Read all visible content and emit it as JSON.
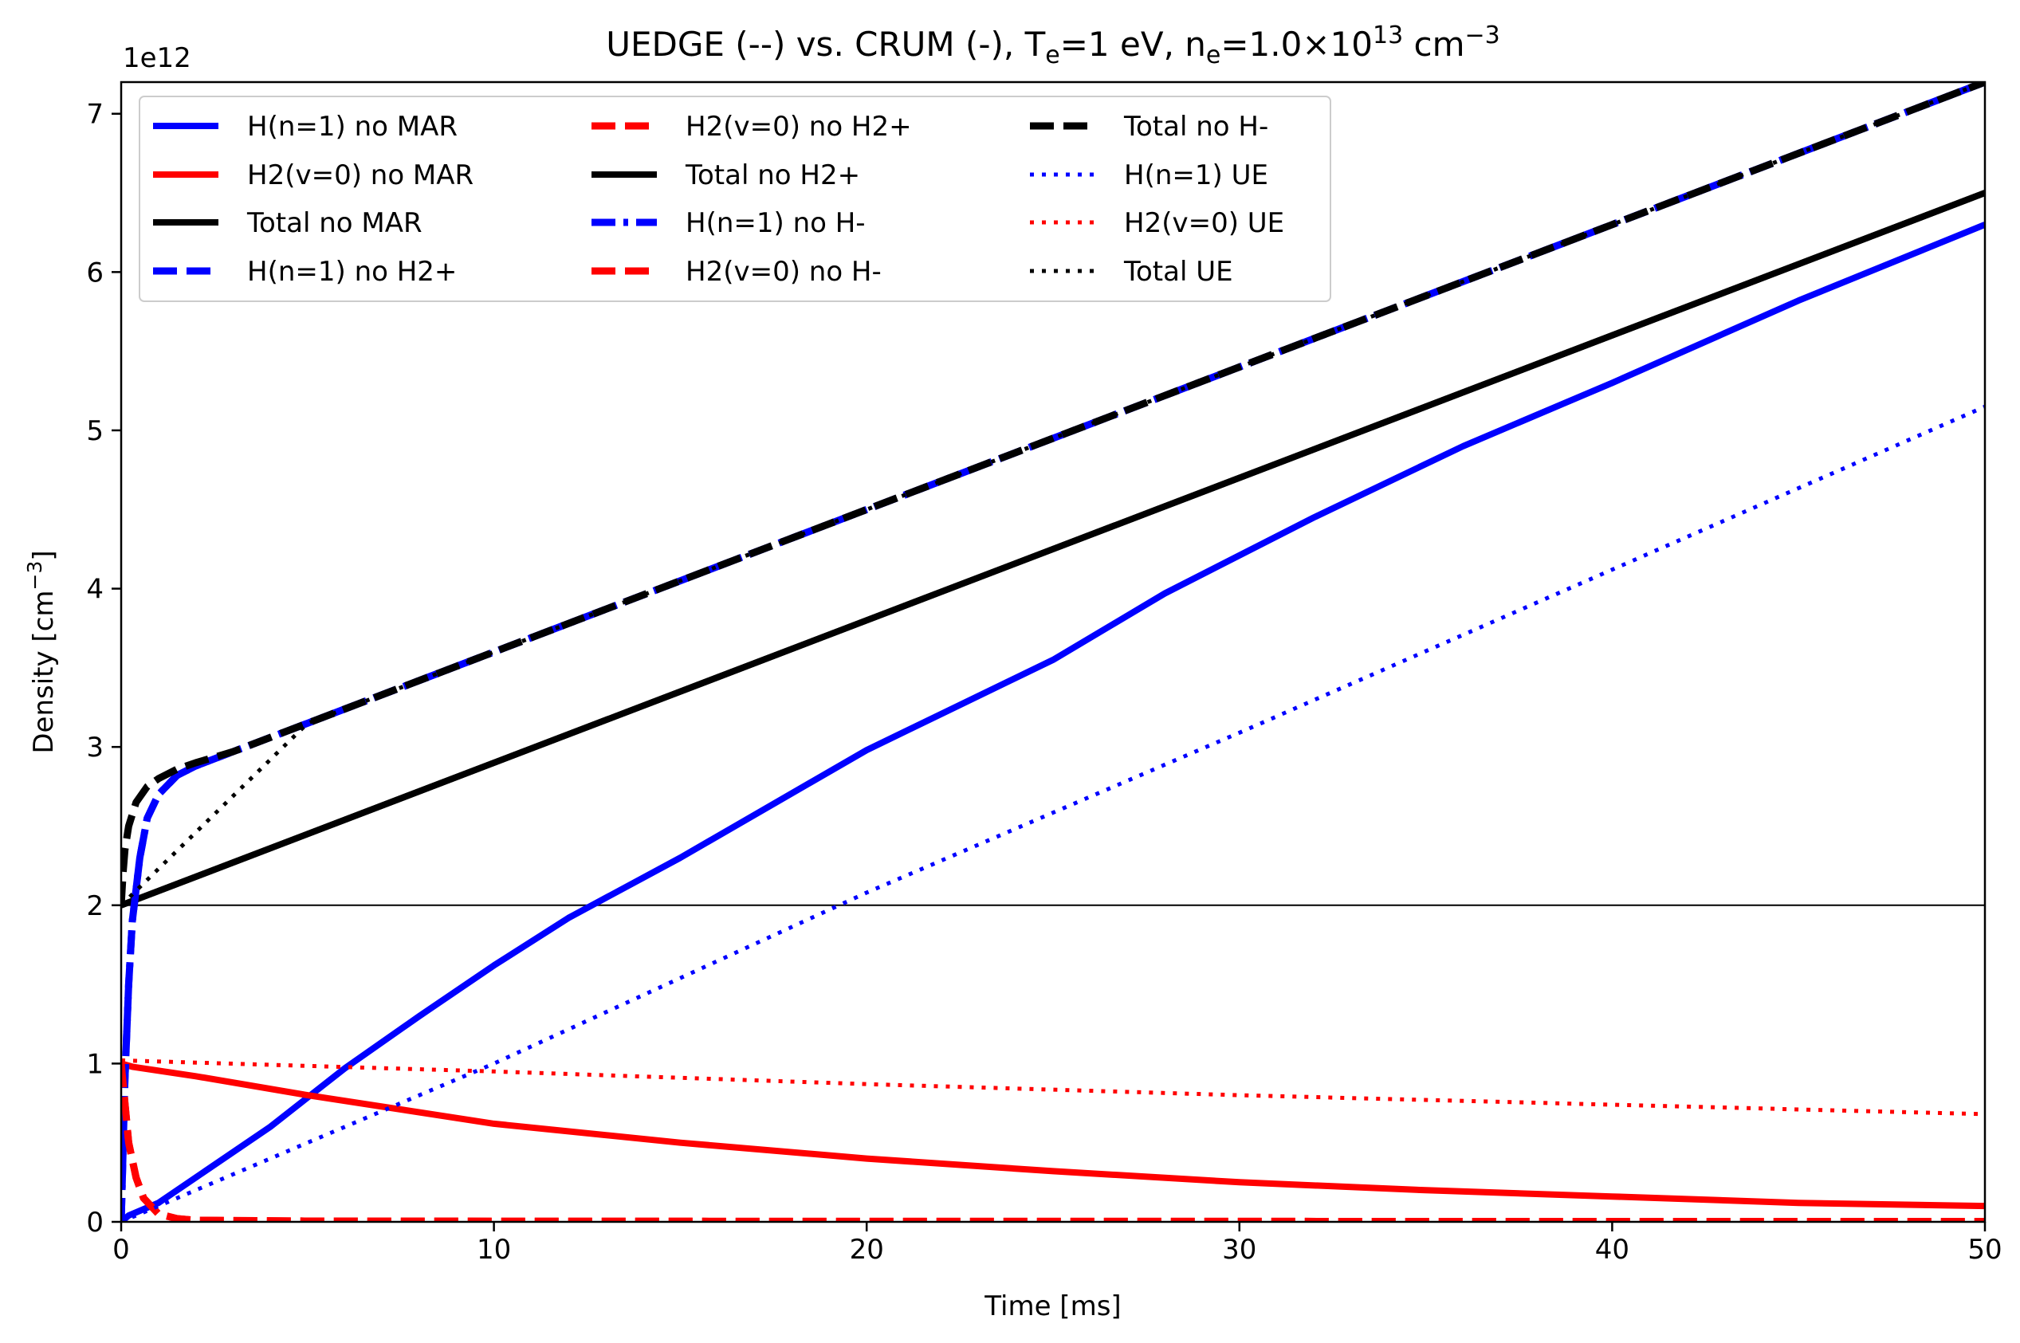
{
  "chart_data": {
    "type": "line",
    "title": {
      "prefix": "UEDGE (--) vs. CRUM (-),  T",
      "te_sub": "e",
      "te_rest": "=1 eV, n",
      "ne_sub": "e",
      "ne_rest": "=1.0×10",
      "exp": "13",
      "unit": " cm",
      "unit_exp": "−3"
    },
    "xlabel": "Time [ms]",
    "ylabel": {
      "text": "Density [cm",
      "exp": "−3",
      "close": "]"
    },
    "y_offset_label": "1e12",
    "xlim": [
      0,
      50
    ],
    "ylim": [
      0,
      7.2
    ],
    "x_ticks": [
      0,
      10,
      20,
      30,
      40,
      50
    ],
    "x_tick_labels": [
      "0",
      "10",
      "20",
      "30",
      "40",
      "50"
    ],
    "y_ticks": [
      0,
      1,
      2,
      3,
      4,
      5,
      6,
      7
    ],
    "y_tick_labels": [
      "0",
      "1",
      "2",
      "3",
      "4",
      "5",
      "6",
      "7"
    ],
    "hline": 2,
    "grid": false,
    "legend_position": "upper-left",
    "legend_columns": 3,
    "series": [
      {
        "name": "H(n=1) no MAR",
        "color": "#0000ff",
        "style": "solid",
        "x": [
          0,
          0.2,
          1,
          2,
          4,
          6,
          8,
          10,
          12,
          15,
          20,
          25,
          28,
          32,
          36,
          40,
          45,
          50
        ],
        "y": [
          0,
          0.04,
          0.12,
          0.28,
          0.6,
          0.97,
          1.3,
          1.62,
          1.92,
          2.3,
          2.98,
          3.55,
          3.97,
          4.45,
          4.9,
          5.3,
          5.82,
          6.3
        ]
      },
      {
        "name": "H2(v=0) no MAR",
        "color": "#ff0000",
        "style": "solid",
        "x": [
          0,
          0.3,
          2,
          5,
          10,
          15,
          20,
          25,
          30,
          35,
          40,
          45,
          50
        ],
        "y": [
          1.0,
          0.98,
          0.92,
          0.8,
          0.62,
          0.5,
          0.4,
          0.32,
          0.25,
          0.2,
          0.16,
          0.12,
          0.1
        ]
      },
      {
        "name": "Total no MAR",
        "color": "#000000",
        "style": "solid",
        "x": [
          0,
          50
        ],
        "y": [
          2.0,
          6.5
        ]
      },
      {
        "name": "H(n=1) no H2+",
        "color": "#0000ff",
        "style": "dashed",
        "x": [
          0,
          0.1,
          0.2,
          0.3,
          0.5,
          0.7,
          1,
          1.5,
          2,
          3,
          5,
          10,
          20,
          30,
          40,
          50
        ],
        "y": [
          0,
          0.9,
          1.5,
          1.9,
          2.3,
          2.55,
          2.7,
          2.82,
          2.88,
          2.97,
          3.15,
          3.6,
          4.5,
          5.4,
          6.3,
          7.2
        ]
      },
      {
        "name": "H2(v=0) no H2+",
        "color": "#ff0000",
        "style": "dashed",
        "x": [
          0,
          0.1,
          0.2,
          0.4,
          0.6,
          1,
          1.5,
          2,
          5,
          10,
          20,
          30,
          40,
          50
        ],
        "y": [
          1.0,
          0.75,
          0.5,
          0.28,
          0.15,
          0.05,
          0.02,
          0.01,
          0.005,
          0.004,
          0.003,
          0.003,
          0.002,
          0.002
        ]
      },
      {
        "name": "Total no H2+",
        "color": "#000000",
        "style": "solid",
        "x": [
          0,
          50
        ],
        "y": [
          2.0,
          6.5
        ]
      },
      {
        "name": "H(n=1) no H-",
        "color": "#0000ff",
        "style": "dashdot",
        "x": [
          0,
          0.1,
          0.2,
          0.3,
          0.5,
          0.7,
          1,
          1.5,
          2,
          3,
          5,
          10,
          20,
          30,
          40,
          50
        ],
        "y": [
          0,
          0.9,
          1.5,
          1.9,
          2.3,
          2.55,
          2.7,
          2.82,
          2.88,
          2.97,
          3.15,
          3.6,
          4.5,
          5.4,
          6.3,
          7.2
        ]
      },
      {
        "name": "H2(v=0) no H-",
        "color": "#ff0000",
        "style": "dashed",
        "x": [
          0,
          0.1,
          0.2,
          0.4,
          0.6,
          1,
          1.5,
          2,
          5,
          10,
          20,
          30,
          40,
          50
        ],
        "y": [
          1.0,
          0.75,
          0.5,
          0.28,
          0.15,
          0.05,
          0.02,
          0.01,
          0.005,
          0.004,
          0.003,
          0.003,
          0.002,
          0.002
        ]
      },
      {
        "name": "Total no H-",
        "color": "#000000",
        "style": "dashed",
        "x": [
          0,
          0.05,
          0.1,
          0.2,
          0.4,
          0.7,
          1,
          1.5,
          2,
          3,
          5,
          10,
          20,
          30,
          40,
          50
        ],
        "y": [
          2.0,
          2.2,
          2.35,
          2.5,
          2.65,
          2.75,
          2.8,
          2.86,
          2.9,
          2.97,
          3.15,
          3.6,
          4.5,
          5.4,
          6.3,
          7.2
        ]
      },
      {
        "name": "H(n=1) UE",
        "color": "#0000ff",
        "style": "dotted",
        "x": [
          0,
          10,
          20,
          30,
          40,
          50
        ],
        "y": [
          0,
          1.0,
          2.08,
          3.09,
          4.12,
          5.15
        ]
      },
      {
        "name": "H2(v=0) UE",
        "color": "#ff0000",
        "style": "dotted",
        "x": [
          0,
          10,
          20,
          30,
          40,
          50
        ],
        "y": [
          1.02,
          0.95,
          0.87,
          0.8,
          0.74,
          0.68
        ]
      },
      {
        "name": "Total UE",
        "color": "#000000",
        "style": "dotted",
        "x": [
          0,
          5,
          10,
          20,
          30,
          40,
          50
        ],
        "y": [
          2.0,
          3.15,
          3.6,
          4.5,
          5.4,
          6.3,
          7.2
        ]
      }
    ]
  }
}
